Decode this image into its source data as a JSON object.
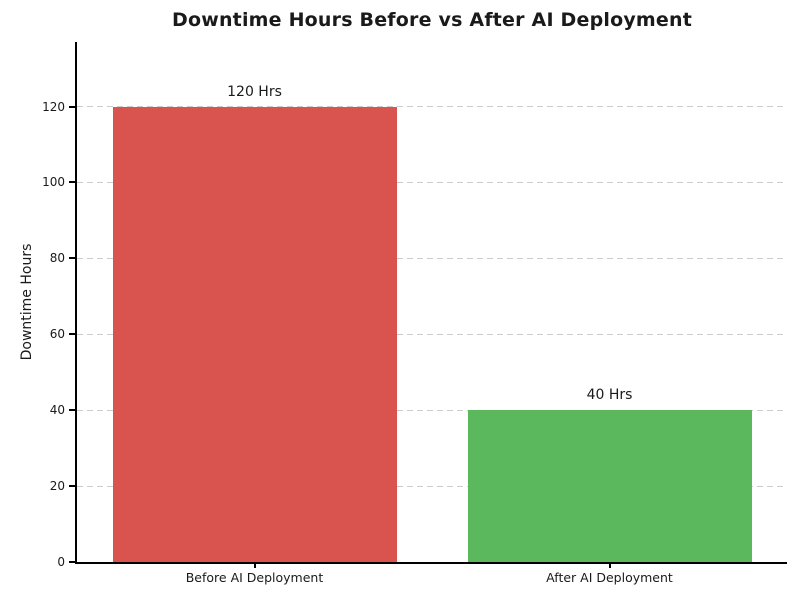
{
  "chart_data": {
    "type": "bar",
    "title": "Downtime Hours Before vs After AI Deployment",
    "xlabel": "",
    "ylabel": "Downtime Hours",
    "categories": [
      "Before AI Deployment",
      "After AI Deployment"
    ],
    "series": [
      {
        "name": "Downtime Hours",
        "values": [
          120,
          40
        ]
      }
    ],
    "bar_value_labels": [
      "120 Hrs",
      "40 Hrs"
    ],
    "bar_colors": [
      "#d9534f",
      "#5cb85c"
    ],
    "yticks": [
      0,
      20,
      40,
      60,
      80,
      100,
      120
    ],
    "ylim": [
      0,
      137
    ],
    "xlim": [
      -0.5,
      1.5
    ],
    "bar_width_units": 0.8,
    "grid": "horizontal-dashed",
    "legend": "none",
    "colors": {
      "title": "#1a1a1a",
      "axis": "#000000",
      "grid": "#cccccc",
      "tick_label": "#1a1a1a",
      "background": "#ffffff"
    }
  }
}
